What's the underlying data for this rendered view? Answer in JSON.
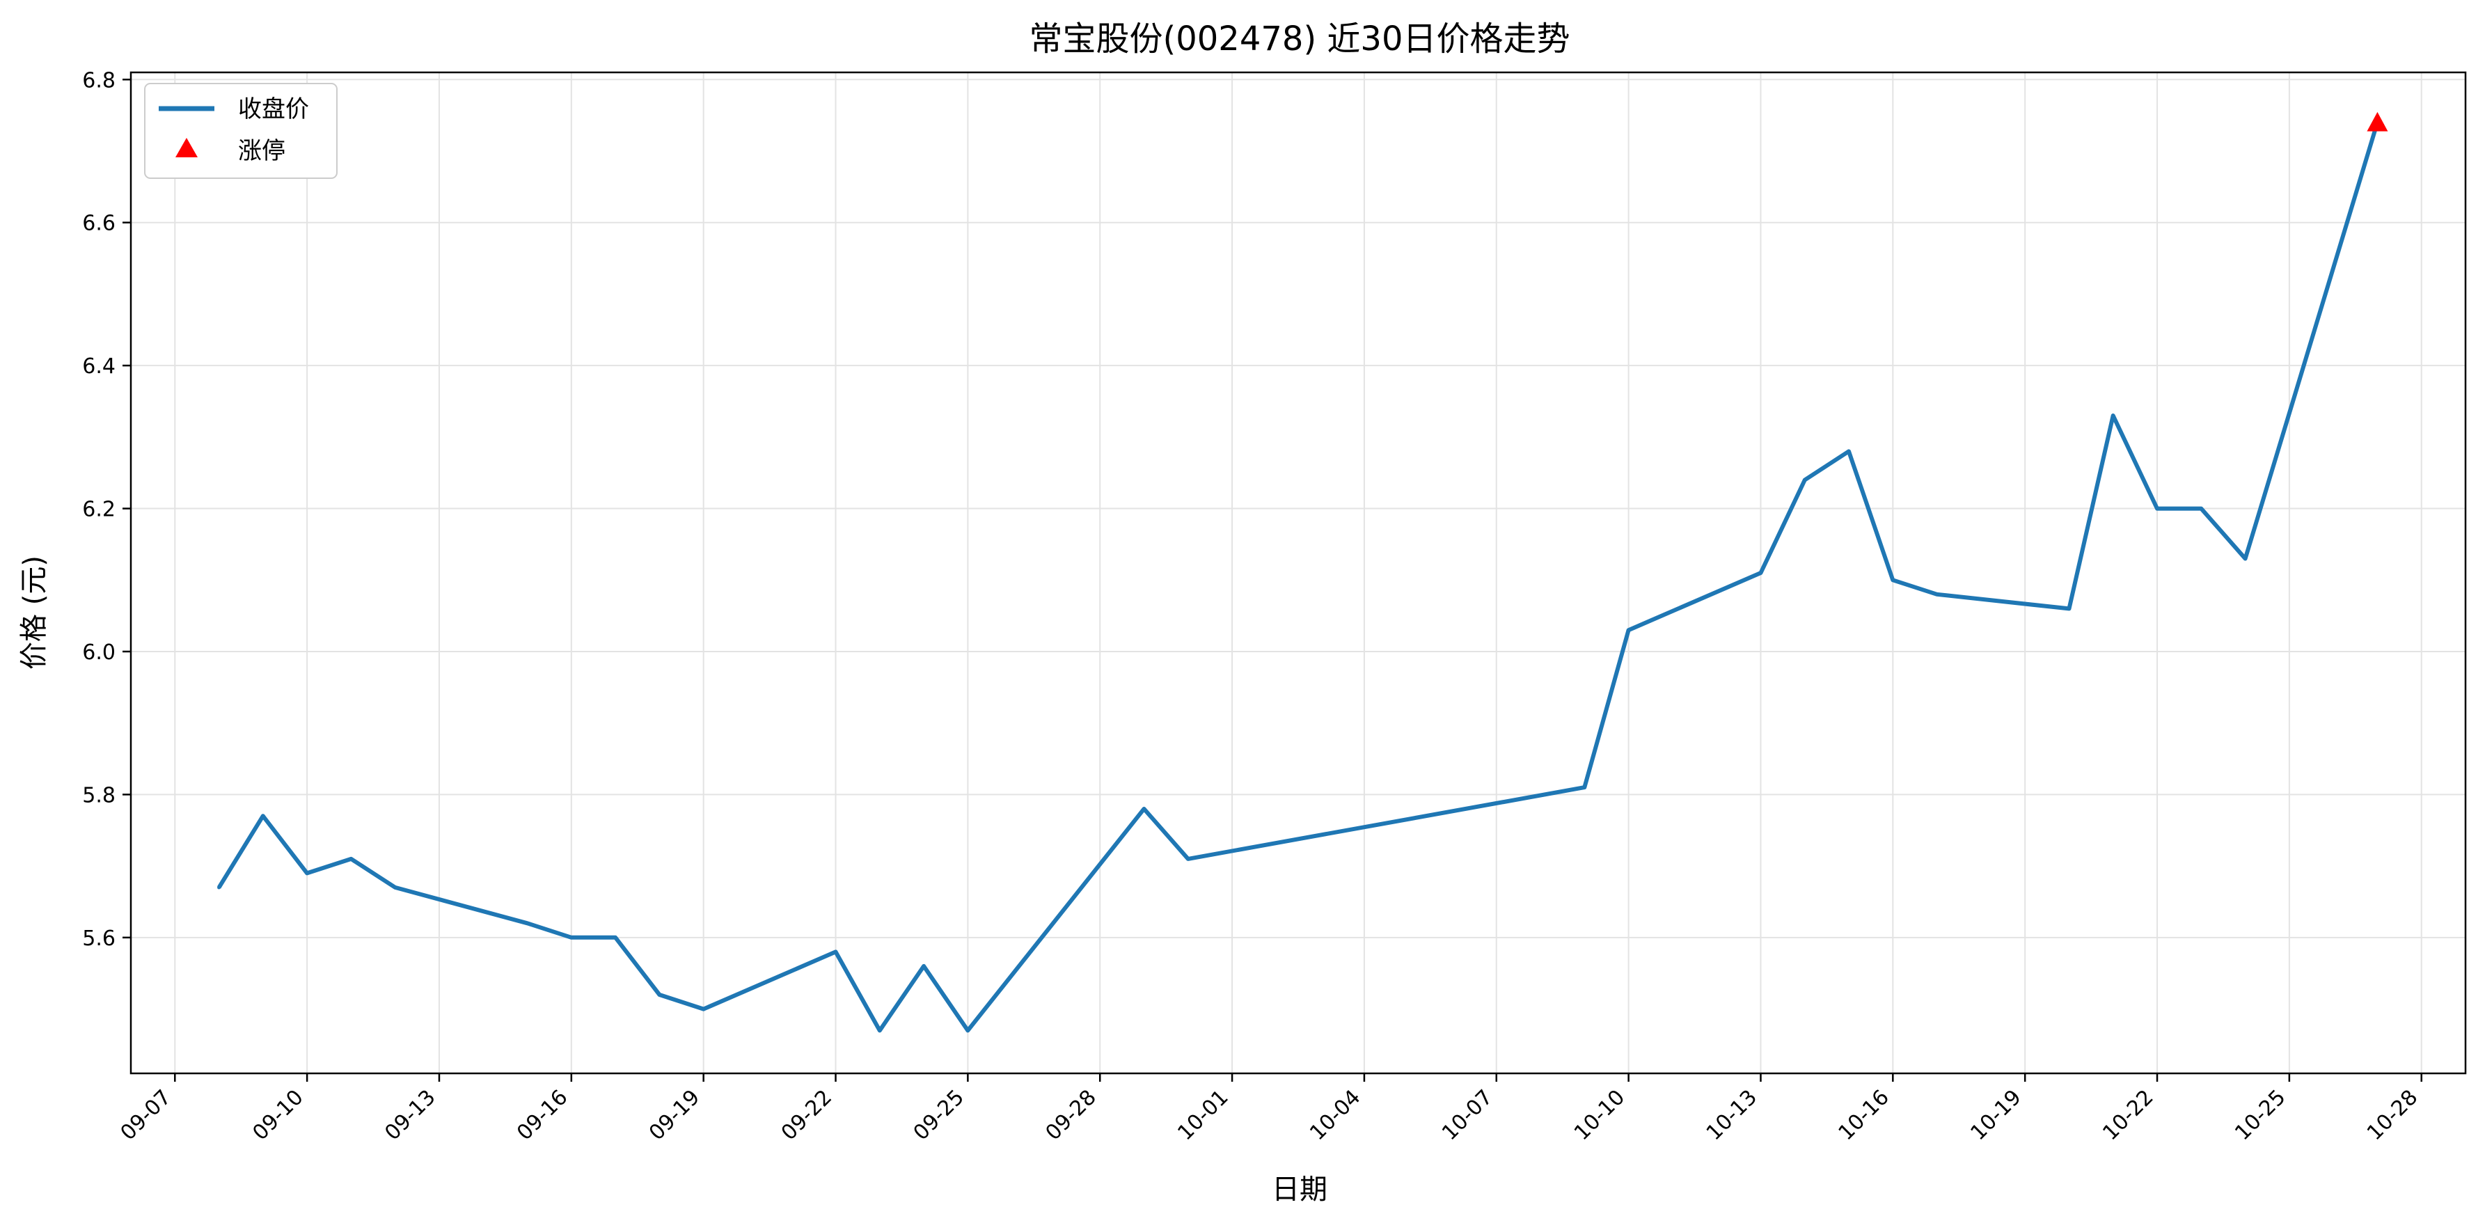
{
  "chart_data": {
    "type": "line",
    "title": "常宝股份(002478) 近30日价格走势",
    "xlabel": "日期",
    "ylabel": "价格 (元)",
    "x_ticks": [
      "09-07",
      "09-10",
      "09-13",
      "09-16",
      "09-19",
      "09-22",
      "09-25",
      "09-28",
      "10-01",
      "10-04",
      "10-07",
      "10-10",
      "10-13",
      "10-16",
      "10-19",
      "10-22",
      "10-25",
      "10-28"
    ],
    "y_ticks": [
      "5.6",
      "5.8",
      "6.0",
      "6.2",
      "6.4",
      "6.6",
      "6.8"
    ],
    "ylim": [
      5.41,
      6.81
    ],
    "xlim": [
      "09-06",
      "10-29"
    ],
    "grid": true,
    "legend_position": "top-left",
    "series": [
      {
        "name": "收盘价",
        "color": "#1f77b4",
        "x": [
          "09-08",
          "09-09",
          "09-10",
          "09-11",
          "09-12",
          "09-15",
          "09-16",
          "09-17",
          "09-18",
          "09-19",
          "09-22",
          "09-23",
          "09-24",
          "09-25",
          "09-29",
          "09-30",
          "10-09",
          "10-10",
          "10-13",
          "10-14",
          "10-15",
          "10-16",
          "10-17",
          "10-20",
          "10-21",
          "10-22",
          "10-23",
          "10-24",
          "10-27"
        ],
        "values": [
          5.67,
          5.77,
          5.69,
          5.71,
          5.67,
          5.62,
          5.6,
          5.6,
          5.52,
          5.5,
          5.58,
          5.47,
          5.56,
          5.47,
          5.78,
          5.71,
          5.81,
          6.03,
          6.11,
          6.24,
          6.28,
          6.1,
          6.08,
          6.06,
          6.33,
          6.2,
          6.2,
          6.13,
          6.74
        ]
      },
      {
        "name": "涨停",
        "color": "#ff0000",
        "marker": "triangle",
        "x": [
          "10-27"
        ],
        "values": [
          6.74
        ]
      }
    ]
  }
}
